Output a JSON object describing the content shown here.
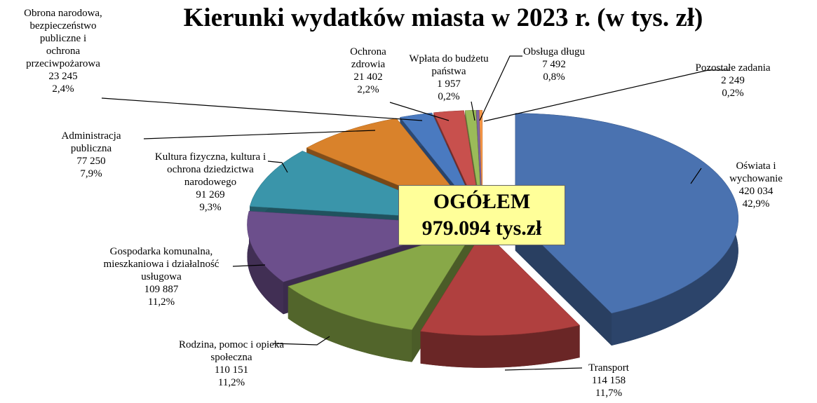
{
  "chart_data": {
    "type": "pie3d",
    "title": "Kierunki wydatków miasta w 2023 r. (w tys. zł)",
    "annotations": [
      "OGÓŁEM",
      "979.094 tys.zł"
    ],
    "categories": [
      "Oświata i wychowanie",
      "Transport",
      "Rodzina, pomoc i opieka\nspołeczna",
      "Gospodarka komunalna,\nmieszkaniowa i działalność\nusługowa",
      "Kultura fizyczna, kultura i\nochrona dziedzictwa\nnarodowego",
      "Administracja\npubliczna",
      "Obrona narodowa,\nbezpieczeństwo\npubliczne i\nochrona\nprzeciwpożarowa",
      "Ochrona\nzdrowia",
      "Obsługa długu",
      "Wpłata do budżetu\npaństwa",
      "Pozostałe zadania"
    ],
    "values": [
      420034,
      114158,
      110151,
      109887,
      91269,
      77250,
      23245,
      21402,
      7492,
      1957,
      2249
    ],
    "value_labels": [
      "420 034",
      "114 158",
      "110 151",
      "109 887",
      "91 269",
      "77 250",
      "23 245",
      "21 402",
      "7 492",
      "1 957",
      "2 249"
    ],
    "percents": [
      42.9,
      11.7,
      11.2,
      11.2,
      9.3,
      7.9,
      2.4,
      2.2,
      0.8,
      0.2,
      0.2
    ],
    "percent_labels": [
      "42,9%",
      "11,7%",
      "11,2%",
      "11,2%",
      "9,3%",
      "7,9%",
      "2,4%",
      "2,2%",
      "0,8%",
      "0,2%",
      "0,2%"
    ],
    "colors": [
      "#4a72b0",
      "#b0403f",
      "#88a848",
      "#6c4f8c",
      "#3a95aa",
      "#d9822b",
      "#4a7ac0",
      "#c8504d",
      "#9bbb59",
      "#8064a2",
      "#f79646"
    ]
  }
}
